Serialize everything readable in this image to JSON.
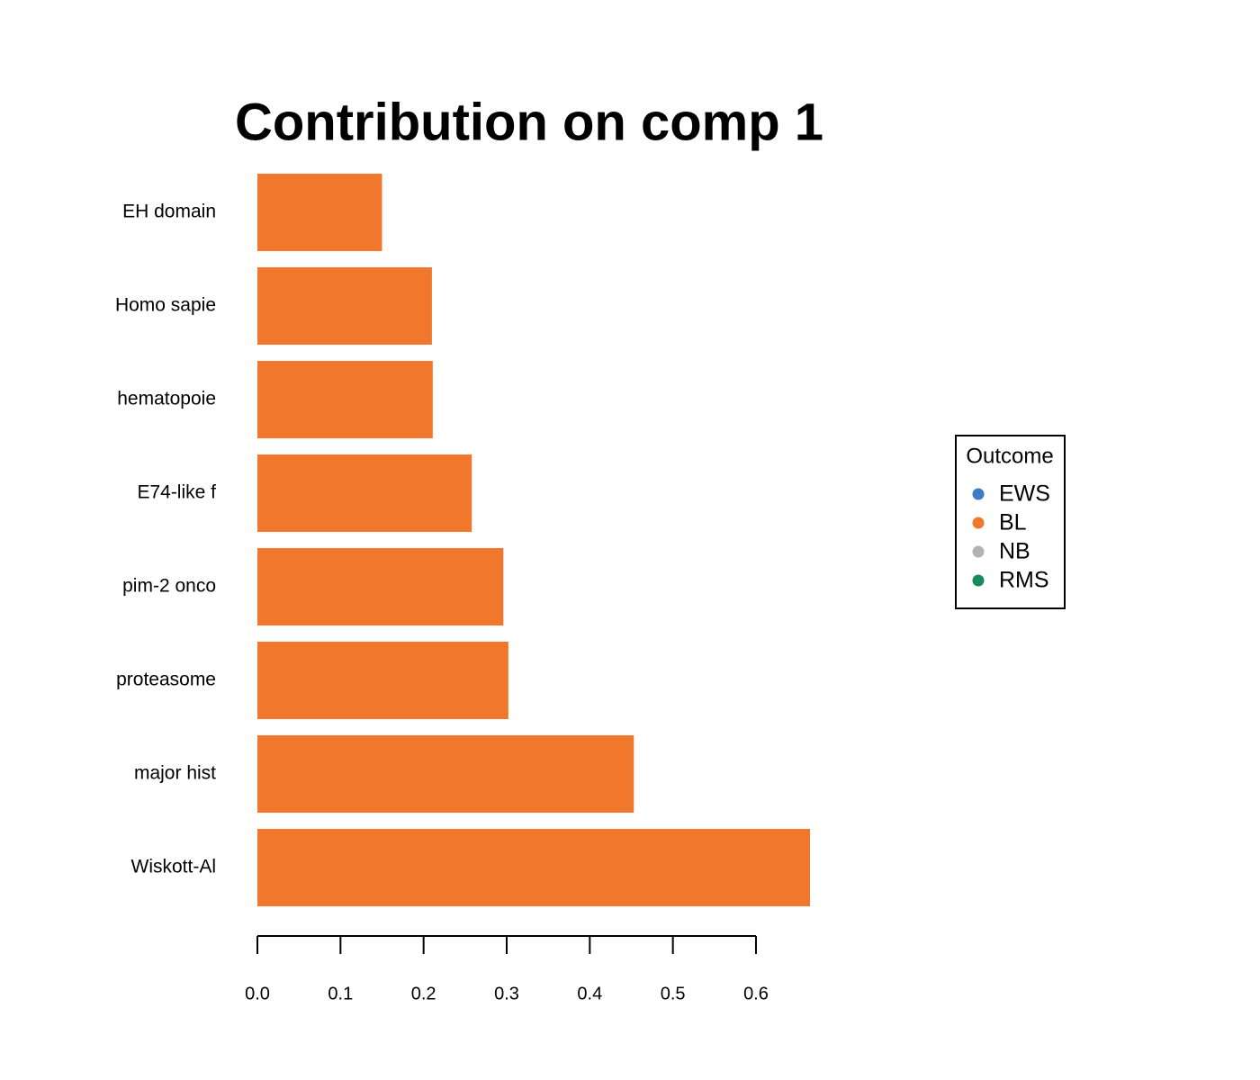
{
  "chart_data": {
    "type": "barh",
    "title": "Contribution on comp 1",
    "categories": [
      "EH domain",
      "Homo sapie",
      "hematopoie",
      "E74-like f",
      "pim-2 onco",
      "proteasome",
      "major hist",
      "Wiskott-Al"
    ],
    "values": [
      0.15,
      0.21,
      0.211,
      0.258,
      0.296,
      0.302,
      0.453,
      0.665
    ],
    "color": "#f0772c",
    "xlim": [
      0,
      0.7
    ],
    "xticks": [
      {
        "value": 0,
        "label": "0.0"
      },
      0.1,
      0.2,
      0.3,
      0.4,
      0.5,
      0.6
    ],
    "legend": {
      "title": "Outcome",
      "position": "right",
      "items": [
        {
          "name": "EWS",
          "color": "#3a7dc2"
        },
        {
          "name": "BL",
          "color": "#f0772c"
        },
        {
          "name": "NB",
          "color": "#b3b3b3"
        },
        {
          "name": "RMS",
          "color": "#1a8a5e"
        }
      ]
    }
  }
}
